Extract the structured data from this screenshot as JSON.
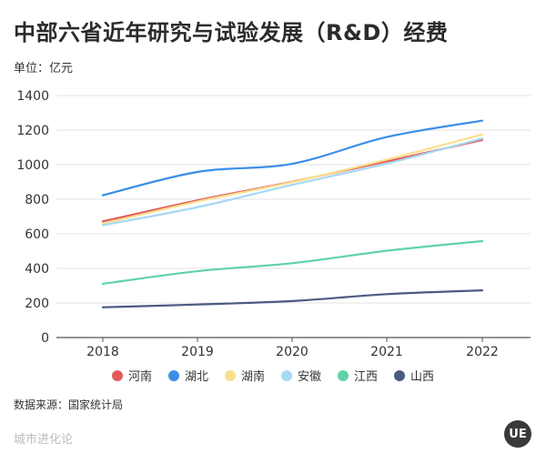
{
  "title": "中部六省近年研究与试验发展（R&D）经费",
  "unit": "单位：亿元",
  "source": "数据来源：国家统计局",
  "brand": "城市进化论",
  "logo_text": "UE",
  "chart_data": {
    "type": "line",
    "x": [
      "2018",
      "2019",
      "2020",
      "2021",
      "2022"
    ],
    "ylim": [
      0,
      1400
    ],
    "yticks": [
      0,
      200,
      400,
      600,
      800,
      1000,
      1200,
      1400
    ],
    "grid": true,
    "legend_placement": "bottom",
    "series": [
      {
        "name": "河南",
        "color": "#e05c5c",
        "values": [
          672,
          794,
          901,
          1019,
          1143
        ]
      },
      {
        "name": "湖北",
        "color": "#3b8ee8",
        "values": [
          823,
          958,
          1005,
          1160,
          1255
        ]
      },
      {
        "name": "湖南",
        "color": "#f9df8d",
        "values": [
          658,
          787,
          899,
          1029,
          1175
        ]
      },
      {
        "name": "安徽",
        "color": "#a6d9f4",
        "values": [
          650,
          754,
          883,
          1006,
          1152
        ]
      },
      {
        "name": "江西",
        "color": "#5fd3a6",
        "values": [
          311,
          384,
          430,
          502,
          558
        ]
      },
      {
        "name": "山西",
        "color": "#4c5a82",
        "values": [
          175,
          191,
          211,
          251,
          273
        ]
      }
    ]
  }
}
